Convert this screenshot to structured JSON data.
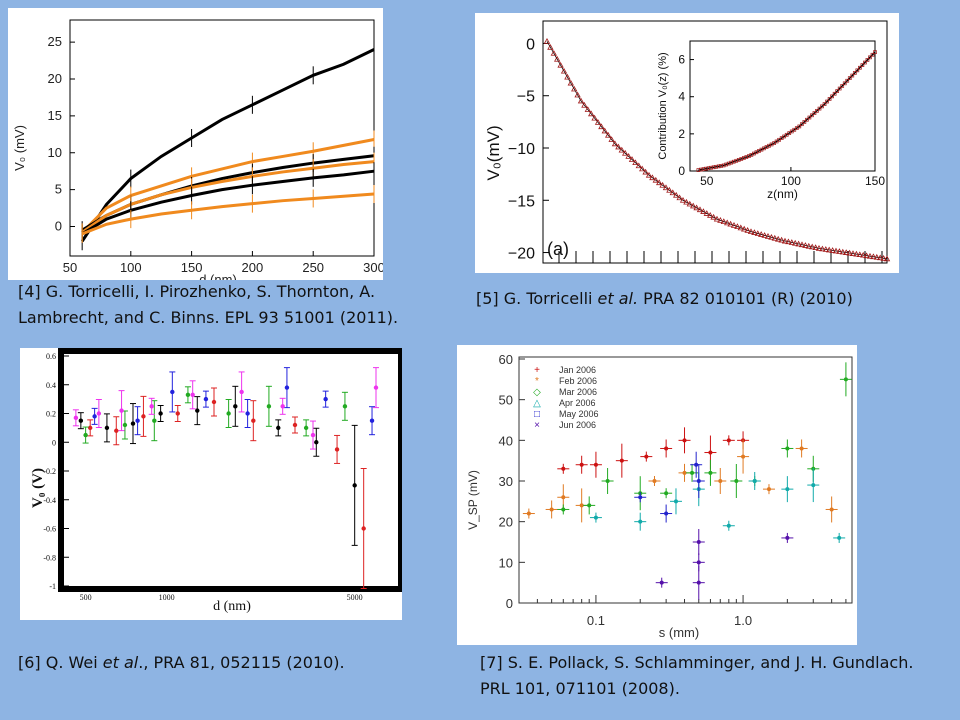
{
  "colors": {
    "background": "#8eb4e3",
    "black": "#000000",
    "orange": "#f08a1e",
    "darkred": "#a01818"
  },
  "captions": {
    "c4_line1": "[4] G. Torricelli, I. Pirozhenko, S. Thornton, A.",
    "c4_line2": "Lambrecht, and C. Binns. EPL 93 51001 (2011).",
    "c5_pre": "[5] G. Torricelli ",
    "c5_em": "et al.",
    "c5_post": " PRA 82 010101 (R) (2010)",
    "c6_pre": "[6] Q. Wei ",
    "c6_em": "et al",
    "c6_post": "., PRA 81, 052115 (2010).",
    "c7_line1": "[7] S. E. Pollack, S. Schlamminger, and J. H. Gundlach.",
    "c7_line2": "PRL 101, 071101 (2008)."
  },
  "chart_data": [
    {
      "id": "chart4",
      "type": "line",
      "xlabel": "d (nm)",
      "ylabel": "V₀ (mV)",
      "xlim": [
        50,
        300
      ],
      "ylim": [
        -4,
        28
      ],
      "xticks": [
        "50",
        "100",
        "150",
        "200",
        "250",
        "300"
      ],
      "yticks": [
        "0",
        "5",
        "10",
        "15",
        "20",
        "25"
      ],
      "x": [
        60,
        80,
        100,
        125,
        150,
        175,
        200,
        225,
        250,
        275,
        300
      ],
      "series": [
        {
          "color": "#000000",
          "values": [
            -2,
            3,
            6.5,
            9.5,
            12,
            14.5,
            16.5,
            18.5,
            20.5,
            22,
            24
          ]
        },
        {
          "color": "#f08a1e",
          "values": [
            -0.8,
            2.5,
            4.2,
            5.5,
            6.8,
            7.8,
            8.8,
            9.5,
            10.2,
            11,
            11.8
          ]
        },
        {
          "color": "#000000",
          "values": [
            -0.5,
            1.5,
            3,
            4.3,
            5.5,
            6.5,
            7.3,
            8,
            8.6,
            9.1,
            9.6
          ]
        },
        {
          "color": "#f08a1e",
          "values": [
            -0.8,
            1.5,
            3,
            4.3,
            5.3,
            6.1,
            6.8,
            7.4,
            7.9,
            8.4,
            8.8
          ]
        },
        {
          "color": "#000000",
          "values": [
            -1,
            1,
            2.2,
            3.3,
            4.2,
            5,
            5.6,
            6.1,
            6.6,
            7,
            7.5
          ]
        },
        {
          "color": "#f08a1e",
          "values": [
            -1,
            0.3,
            1,
            1.7,
            2.2,
            2.7,
            3.1,
            3.5,
            3.8,
            4.1,
            4.4
          ]
        }
      ]
    },
    {
      "id": "chart5",
      "type": "scatter",
      "ylabel": "V₀(mV)",
      "annotation": "(a)",
      "yticks": [
        "0",
        "−5",
        "−10",
        "−15",
        "−20"
      ],
      "ylim": [
        -21,
        1
      ],
      "main": {
        "x": [
          0,
          20,
          40,
          60,
          80,
          100,
          120,
          140,
          160,
          180,
          200
        ],
        "values": [
          0.2,
          -5.5,
          -9.6,
          -12.6,
          -15.0,
          -16.8,
          -18.0,
          -18.9,
          -19.6,
          -20.1,
          -20.6
        ]
      },
      "inset": {
        "xlabel": "z(nm)",
        "ylabel": "Contribution V₀(z) (%)",
        "xticks": [
          "50",
          "100",
          "150"
        ],
        "yticks": [
          "0",
          "2",
          "4",
          "6"
        ],
        "xlim": [
          40,
          150
        ],
        "ylim": [
          0,
          7
        ],
        "x": [
          45,
          60,
          75,
          90,
          105,
          120,
          135,
          150
        ],
        "values": [
          0.05,
          0.3,
          0.8,
          1.5,
          2.4,
          3.6,
          5.0,
          6.4
        ]
      }
    },
    {
      "id": "chart6",
      "type": "scatter",
      "xlabel": "d (nm)",
      "ylabel": "V₀ (V)",
      "xlim": [
        430,
        7000
      ],
      "ylim": [
        -1.0,
        0.6
      ],
      "xscale": "log",
      "xticks": [
        "500",
        "1000",
        "5000"
      ],
      "yticks": [
        "0.6",
        "0.4",
        "0.2",
        "0",
        "-0.2",
        "-0.4",
        "-0.6",
        "-0.8",
        "-1"
      ],
      "series": [
        {
          "color": "#000000",
          "x": [
            480,
            600,
            750,
            950,
            1300,
            1800,
            2600,
            3600,
            5000
          ],
          "values": [
            0.15,
            0.1,
            0.13,
            0.2,
            0.22,
            0.25,
            0.1,
            0.0,
            -0.3
          ]
        },
        {
          "color": "#dd2222",
          "x": [
            520,
            650,
            820,
            1100,
            1500,
            2100,
            3000,
            4300,
            5400
          ],
          "values": [
            0.1,
            0.08,
            0.18,
            0.2,
            0.28,
            0.15,
            0.12,
            -0.05,
            -0.6
          ]
        },
        {
          "color": "#22aa22",
          "x": [
            500,
            700,
            900,
            1200,
            1700,
            2400,
            3300,
            4600
          ],
          "values": [
            0.05,
            0.12,
            0.15,
            0.33,
            0.2,
            0.25,
            0.1,
            0.25
          ]
        },
        {
          "color": "#2222dd",
          "x": [
            540,
            780,
            1050,
            1400,
            2000,
            2800,
            3900,
            5800
          ],
          "values": [
            0.18,
            0.15,
            0.35,
            0.3,
            0.2,
            0.38,
            0.3,
            0.15
          ]
        },
        {
          "color": "#ee33ee",
          "x": [
            460,
            560,
            680,
            880,
            1250,
            1900,
            2700,
            3500,
            6000
          ],
          "values": [
            0.17,
            0.2,
            0.22,
            0.25,
            0.33,
            0.35,
            0.25,
            0.05,
            0.38
          ]
        }
      ]
    },
    {
      "id": "chart7",
      "type": "scatter",
      "xlabel": "s (mm)",
      "ylabel": "V_SP (mV)",
      "xscale": "log",
      "xlim": [
        0.03,
        5.5
      ],
      "ylim": [
        0,
        60
      ],
      "xticks": [
        "0.1",
        "1.0"
      ],
      "yticks": [
        "0",
        "10",
        "20",
        "30",
        "40",
        "50",
        "60"
      ],
      "legend": [
        {
          "label": "Jan 2006",
          "marker": "+",
          "color": "#cc1111"
        },
        {
          "label": "Feb 2006",
          "marker": "*",
          "color": "#e07a22"
        },
        {
          "label": "Mar 2006",
          "marker": "◇",
          "color": "#22aa22"
        },
        {
          "label": "Apr 2006",
          "marker": "△",
          "color": "#11aaaa"
        },
        {
          "label": "May 2006",
          "marker": "□",
          "color": "#2222cc"
        },
        {
          "label": "Jun 2006",
          "marker": "×",
          "color": "#5511aa"
        }
      ],
      "series": [
        {
          "name": "Jan 2006",
          "color": "#cc1111",
          "x": [
            0.06,
            0.08,
            0.1,
            0.15,
            0.22,
            0.3,
            0.4,
            0.6,
            0.8,
            1.0
          ],
          "values": [
            33,
            34,
            34,
            35,
            36,
            38,
            40,
            37,
            40,
            40
          ]
        },
        {
          "name": "Feb 2006",
          "color": "#e07a22",
          "x": [
            0.035,
            0.05,
            0.06,
            0.08,
            0.25,
            0.4,
            0.7,
            1.0,
            1.5,
            2.5,
            4.0
          ],
          "values": [
            22,
            23,
            26,
            24,
            30,
            32,
            30,
            36,
            28,
            38,
            23
          ]
        },
        {
          "name": "Mar 2006",
          "color": "#22aa22",
          "x": [
            0.06,
            0.09,
            0.12,
            0.2,
            0.3,
            0.45,
            0.6,
            0.9,
            1.2,
            2.0,
            3.0,
            5.0
          ],
          "values": [
            23,
            24,
            30,
            27,
            27,
            32,
            32,
            30,
            30,
            38,
            33,
            55
          ]
        },
        {
          "name": "Apr 2006",
          "color": "#11aaaa",
          "x": [
            0.1,
            0.2,
            0.35,
            0.5,
            0.8,
            1.2,
            2.0,
            3.0,
            4.5
          ],
          "values": [
            21,
            20,
            25,
            28,
            19,
            30,
            28,
            29,
            16
          ]
        },
        {
          "name": "May 2006",
          "color": "#2222cc",
          "x": [
            0.2,
            0.3,
            0.48,
            0.5
          ],
          "values": [
            26,
            22,
            34,
            30
          ]
        },
        {
          "name": "Jun 2006",
          "color": "#5511aa",
          "x": [
            0.28,
            0.5,
            0.5,
            0.5,
            2.0
          ],
          "values": [
            5,
            10,
            15,
            5,
            16
          ]
        }
      ]
    }
  ]
}
